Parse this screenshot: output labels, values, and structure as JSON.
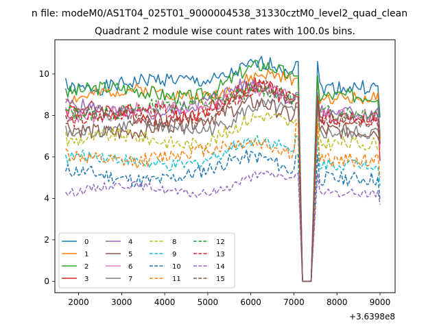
{
  "figure": {
    "suptitle": "n file: modeM0/AS1T04_025T01_9000004538_31330cztM0_level2_quad_clean",
    "offset_label": "+3.6398e8"
  },
  "chart_data": {
    "type": "line",
    "title": "Quadrant 2 module wise count rates with 100.0s bins.",
    "xlabel": "",
    "ylabel": "",
    "xlim": [
      1450,
      9350
    ],
    "ylim": [
      -0.55,
      11.65
    ],
    "xticks": [
      2000,
      3000,
      4000,
      5000,
      6000,
      7000,
      8000,
      9000
    ],
    "yticks": [
      0,
      2,
      4,
      6,
      8,
      10
    ],
    "grid": false,
    "legend": "lower-left",
    "gap": {
      "start": 7100,
      "zero_from": 7200,
      "zero_to": 7400,
      "end": 7550
    },
    "series": [
      {
        "name": "0",
        "color": "#1f77b4",
        "dash": "solid",
        "base": 9.5,
        "bump": 1.2,
        "amp": 0.35,
        "edge": 10.6,
        "start": 9.8,
        "end": 7.9,
        "seed": 1
      },
      {
        "name": "1",
        "color": "#ff7f0e",
        "dash": "solid",
        "base": 9.0,
        "bump": 0.9,
        "amp": 0.3,
        "edge": 9.8,
        "start": 8.8,
        "end": 6.7,
        "seed": 2
      },
      {
        "name": "2",
        "color": "#2ca02c",
        "dash": "solid",
        "base": 9.1,
        "bump": 1.1,
        "amp": 0.35,
        "edge": 9.9,
        "start": 9.3,
        "end": 7.0,
        "seed": 3
      },
      {
        "name": "3",
        "color": "#d62728",
        "dash": "solid",
        "base": 8.1,
        "bump": 1.1,
        "amp": 0.4,
        "edge": 9.0,
        "start": 8.3,
        "end": 5.8,
        "seed": 4
      },
      {
        "name": "4",
        "color": "#9467bd",
        "dash": "solid",
        "base": 8.3,
        "bump": 1.2,
        "amp": 0.35,
        "edge": 9.1,
        "start": 8.6,
        "end": 7.1,
        "seed": 5
      },
      {
        "name": "5",
        "color": "#8c564b",
        "dash": "solid",
        "base": 7.4,
        "bump": 1.4,
        "amp": 0.4,
        "edge": 8.6,
        "start": 7.6,
        "end": 6.6,
        "seed": 6
      },
      {
        "name": "6",
        "color": "#e377c2",
        "dash": "solid",
        "base": 8.2,
        "bump": 1.3,
        "amp": 0.35,
        "edge": 9.0,
        "start": 8.4,
        "end": 6.4,
        "seed": 7
      },
      {
        "name": "7",
        "color": "#7f7f7f",
        "dash": "solid",
        "base": 7.3,
        "bump": 1.2,
        "amp": 0.35,
        "edge": 8.4,
        "start": 7.5,
        "end": 6.7,
        "seed": 8
      },
      {
        "name": "8",
        "color": "#bcbd22",
        "dash": "dashed",
        "base": 6.8,
        "bump": 1.0,
        "amp": 0.35,
        "edge": 7.8,
        "start": 7.2,
        "end": 6.3,
        "seed": 9
      },
      {
        "name": "9",
        "color": "#17becf",
        "dash": "dashed",
        "base": 5.8,
        "bump": 0.8,
        "amp": 0.3,
        "edge": 7.0,
        "start": 6.1,
        "end": 4.6,
        "seed": 10
      },
      {
        "name": "10",
        "color": "#1f77b4",
        "dash": "dashed",
        "base": 5.1,
        "bump": 0.8,
        "amp": 0.35,
        "edge": 6.1,
        "start": 5.3,
        "end": 3.9,
        "seed": 11
      },
      {
        "name": "11",
        "color": "#ff7f0e",
        "dash": "dashed",
        "base": 6.0,
        "bump": 0.8,
        "amp": 0.35,
        "edge": 7.6,
        "start": 6.4,
        "end": 5.0,
        "seed": 12
      },
      {
        "name": "12",
        "color": "#2ca02c",
        "dash": "dashed",
        "base": 8.3,
        "bump": 1.2,
        "amp": 0.35,
        "edge": 9.0,
        "start": 8.3,
        "end": 6.9,
        "seed": 13
      },
      {
        "name": "13",
        "color": "#d62728",
        "dash": "dashed",
        "base": 8.0,
        "bump": 1.4,
        "amp": 0.35,
        "edge": 8.9,
        "start": 8.0,
        "end": 6.6,
        "seed": 14
      },
      {
        "name": "14",
        "color": "#9467bd",
        "dash": "dashed",
        "base": 4.4,
        "bump": 0.6,
        "amp": 0.2,
        "edge": 5.2,
        "start": 4.3,
        "end": 3.7,
        "seed": 15
      },
      {
        "name": "15",
        "color": "#8c564b",
        "dash": "dashed",
        "base": 7.9,
        "bump": 1.3,
        "amp": 0.35,
        "edge": 8.8,
        "start": 8.0,
        "end": 6.7,
        "seed": 16
      }
    ]
  }
}
